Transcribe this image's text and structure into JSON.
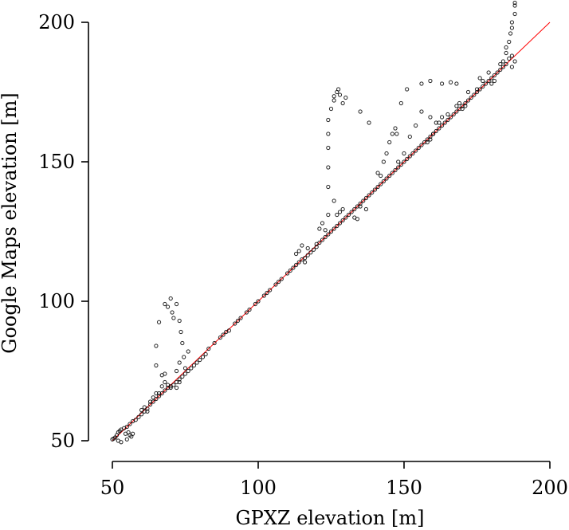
{
  "chart_data": {
    "type": "scatter",
    "title": "",
    "xlabel": "GPXZ elevation [m]",
    "ylabel": "Google Maps elevation [m]",
    "xlim": [
      50,
      200
    ],
    "ylim": [
      50,
      200
    ],
    "x_ticks": [
      "50",
      "100",
      "150",
      "200"
    ],
    "y_ticks": [
      "50",
      "100",
      "150",
      "200"
    ],
    "grid": false,
    "marker_color": "#000000",
    "reference_line": {
      "color": "#ff0000",
      "x": [
        50,
        200
      ],
      "y": [
        50,
        200
      ]
    },
    "series": [
      {
        "points": [
          [
            50,
            50.5
          ],
          [
            50.5,
            50.8
          ],
          [
            51,
            51.2
          ],
          [
            51.5,
            52
          ],
          [
            52,
            53
          ],
          [
            52.5,
            53.5
          ],
          [
            53,
            54
          ],
          [
            54,
            54.5
          ],
          [
            55,
            55
          ],
          [
            56,
            56
          ],
          [
            53,
            49.5
          ],
          [
            55,
            50.5
          ],
          [
            56,
            52
          ],
          [
            57,
            52.5
          ],
          [
            55.5,
            53
          ],
          [
            54.5,
            52.5
          ],
          [
            56.5,
            51.5
          ],
          [
            52,
            50
          ],
          [
            57,
            57
          ],
          [
            58,
            57.5
          ],
          [
            59,
            58.5
          ],
          [
            60,
            59.5
          ],
          [
            61,
            60.5
          ],
          [
            62,
            61.5
          ],
          [
            63,
            63
          ],
          [
            64,
            64
          ],
          [
            65,
            65
          ],
          [
            66,
            66
          ],
          [
            60,
            61
          ],
          [
            61,
            62
          ],
          [
            63,
            64
          ],
          [
            64,
            65.5
          ],
          [
            65,
            67
          ],
          [
            66,
            67
          ],
          [
            62,
            60.5
          ],
          [
            67,
            67
          ],
          [
            68,
            68
          ],
          [
            69,
            69
          ],
          [
            70,
            69.5
          ],
          [
            71,
            70
          ],
          [
            72,
            71
          ],
          [
            73,
            72
          ],
          [
            74,
            73
          ],
          [
            75,
            74
          ],
          [
            76,
            75
          ],
          [
            77,
            76
          ],
          [
            78,
            77
          ],
          [
            79,
            78
          ],
          [
            80,
            79
          ],
          [
            81,
            80
          ],
          [
            82,
            81
          ],
          [
            67,
            69.5
          ],
          [
            68,
            71
          ],
          [
            69,
            70
          ],
          [
            70,
            69
          ],
          [
            72,
            69
          ],
          [
            73,
            71
          ],
          [
            65,
            77
          ],
          [
            65,
            84
          ],
          [
            66,
            92.5
          ],
          [
            67,
            73.5
          ],
          [
            68,
            74
          ],
          [
            68,
            99
          ],
          [
            69,
            98
          ],
          [
            70,
            101
          ],
          [
            70.5,
            96
          ],
          [
            71,
            94
          ],
          [
            72,
            99
          ],
          [
            73,
            93
          ],
          [
            73.5,
            89
          ],
          [
            74,
            85
          ],
          [
            74.5,
            80
          ],
          [
            75,
            76
          ],
          [
            76,
            82
          ],
          [
            73,
            78
          ],
          [
            72,
            75
          ],
          [
            83,
            83
          ],
          [
            85,
            85
          ],
          [
            87,
            87
          ],
          [
            88,
            88
          ],
          [
            89,
            89
          ],
          [
            90,
            89.5
          ],
          [
            92,
            92
          ],
          [
            93,
            93
          ],
          [
            94,
            94
          ],
          [
            96,
            96
          ],
          [
            97,
            97
          ],
          [
            99,
            99
          ],
          [
            100,
            100
          ],
          [
            102,
            102
          ],
          [
            103,
            103
          ],
          [
            104,
            104
          ],
          [
            106,
            106
          ],
          [
            107,
            107
          ],
          [
            108,
            108
          ],
          [
            110,
            110
          ],
          [
            111,
            111
          ],
          [
            112,
            112
          ],
          [
            113,
            113
          ],
          [
            114,
            114
          ],
          [
            115,
            115
          ],
          [
            116,
            115.5
          ],
          [
            117,
            116.5
          ],
          [
            118,
            117.5
          ],
          [
            119,
            118.5
          ],
          [
            120,
            119.5
          ],
          [
            121,
            121
          ],
          [
            122,
            122
          ],
          [
            123,
            123
          ],
          [
            124,
            124
          ],
          [
            125,
            125
          ],
          [
            126,
            126
          ],
          [
            113,
            117
          ],
          [
            114,
            118
          ],
          [
            115,
            120
          ],
          [
            117,
            119
          ],
          [
            116,
            114
          ],
          [
            120,
            120.5
          ],
          [
            121,
            126
          ],
          [
            122,
            128
          ],
          [
            123,
            125.5
          ],
          [
            127,
            127
          ],
          [
            128,
            128
          ],
          [
            129,
            129
          ],
          [
            130,
            130
          ],
          [
            131,
            131
          ],
          [
            132,
            132
          ],
          [
            133,
            133
          ],
          [
            134,
            134
          ],
          [
            135,
            135
          ],
          [
            136,
            136
          ],
          [
            137,
            137
          ],
          [
            138,
            138
          ],
          [
            139,
            139
          ],
          [
            140,
            140
          ],
          [
            124,
            131
          ],
          [
            124,
            141
          ],
          [
            124,
            148
          ],
          [
            124,
            155
          ],
          [
            124,
            160
          ],
          [
            124,
            165
          ],
          [
            125,
            169
          ],
          [
            126,
            172
          ],
          [
            126,
            173.5
          ],
          [
            127,
            175
          ],
          [
            127.5,
            176
          ],
          [
            128,
            174
          ],
          [
            129,
            171
          ],
          [
            130,
            173
          ],
          [
            135,
            168
          ],
          [
            138,
            164
          ],
          [
            126,
            136
          ],
          [
            127,
            131
          ],
          [
            128,
            132
          ],
          [
            129,
            133
          ],
          [
            133,
            130
          ],
          [
            134,
            129.5
          ],
          [
            135,
            134
          ],
          [
            137,
            133
          ],
          [
            141,
            141
          ],
          [
            142,
            142
          ],
          [
            143,
            143
          ],
          [
            144,
            144
          ],
          [
            145,
            145
          ],
          [
            146,
            146
          ],
          [
            147,
            147
          ],
          [
            148,
            148
          ],
          [
            149,
            149
          ],
          [
            150,
            150
          ],
          [
            151,
            151
          ],
          [
            152,
            152
          ],
          [
            153,
            153
          ],
          [
            154,
            154
          ],
          [
            155,
            155
          ],
          [
            156,
            156
          ],
          [
            157,
            157
          ],
          [
            158,
            158
          ],
          [
            141,
            146
          ],
          [
            142,
            145
          ],
          [
            143,
            150
          ],
          [
            144,
            153
          ],
          [
            145,
            157
          ],
          [
            146,
            160
          ],
          [
            147,
            162
          ],
          [
            147.5,
            160
          ],
          [
            148,
            150
          ],
          [
            150,
            153
          ],
          [
            152,
            159
          ],
          [
            154,
            163
          ],
          [
            156,
            168
          ],
          [
            159,
            166
          ],
          [
            162,
            164
          ],
          [
            160,
            160
          ],
          [
            149,
            171
          ],
          [
            151,
            176
          ],
          [
            156,
            178
          ],
          [
            159,
            179
          ],
          [
            163,
            178
          ],
          [
            166,
            178.5
          ],
          [
            168,
            178
          ],
          [
            169,
            171
          ],
          [
            171,
            170
          ],
          [
            159,
            159
          ],
          [
            160,
            160
          ],
          [
            161,
            161
          ],
          [
            162,
            162
          ],
          [
            163,
            163
          ],
          [
            164,
            164
          ],
          [
            165,
            165
          ],
          [
            166,
            166
          ],
          [
            167,
            167
          ],
          [
            168,
            168
          ],
          [
            169,
            169
          ],
          [
            170,
            170
          ],
          [
            171,
            171
          ],
          [
            172,
            172
          ],
          [
            173,
            173
          ],
          [
            174,
            174
          ],
          [
            175,
            175
          ],
          [
            176,
            176
          ],
          [
            177,
            177
          ],
          [
            178,
            178
          ],
          [
            179,
            179
          ],
          [
            180,
            180
          ],
          [
            181,
            181
          ],
          [
            182,
            182
          ],
          [
            183,
            183
          ],
          [
            184,
            184
          ],
          [
            185,
            185
          ],
          [
            158,
            157
          ],
          [
            159,
            158
          ],
          [
            161,
            164
          ],
          [
            163,
            166
          ],
          [
            165,
            167
          ],
          [
            168,
            170
          ],
          [
            170,
            169
          ],
          [
            172,
            175
          ],
          [
            175,
            176
          ],
          [
            176,
            180
          ],
          [
            177,
            179
          ],
          [
            179,
            182
          ],
          [
            180,
            178
          ],
          [
            181,
            179
          ],
          [
            183,
            185
          ],
          [
            184,
            186
          ],
          [
            185,
            189
          ],
          [
            185,
            191
          ],
          [
            186,
            193
          ],
          [
            186.5,
            196
          ],
          [
            187,
            198
          ],
          [
            187,
            200
          ],
          [
            188,
            206
          ],
          [
            188,
            207
          ],
          [
            188,
            203
          ],
          [
            187,
            188
          ],
          [
            188,
            186
          ],
          [
            187,
            184
          ],
          [
            186,
            187
          ]
        ]
      }
    ]
  }
}
